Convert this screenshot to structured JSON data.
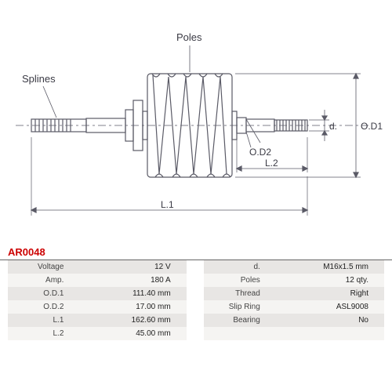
{
  "partCode": "AR0048",
  "diagram": {
    "labels": {
      "splines": "Splines",
      "poles": "Poles",
      "od1": "O.D1",
      "od2": "O.D2",
      "d": "d.",
      "l1": "L.1",
      "l2": "L.2"
    },
    "stroke": "#5a5a66",
    "fontsize": 13
  },
  "specs": {
    "left": [
      {
        "label": "Voltage",
        "value": "12 V"
      },
      {
        "label": "Amp.",
        "value": "180 A"
      },
      {
        "label": "O.D.1",
        "value": "111.40 mm"
      },
      {
        "label": "O.D.2",
        "value": "17.00 mm"
      },
      {
        "label": "L.1",
        "value": "162.60 mm"
      },
      {
        "label": "L.2",
        "value": "45.00 mm"
      }
    ],
    "right": [
      {
        "label": "d.",
        "value": "M16x1.5 mm"
      },
      {
        "label": "Poles",
        "value": "12 qty."
      },
      {
        "label": "Thread",
        "value": "Right"
      },
      {
        "label": "Slip Ring",
        "value": "ASL9008"
      },
      {
        "label": "Bearing",
        "value": "No"
      },
      {
        "label": "",
        "value": ""
      }
    ]
  }
}
